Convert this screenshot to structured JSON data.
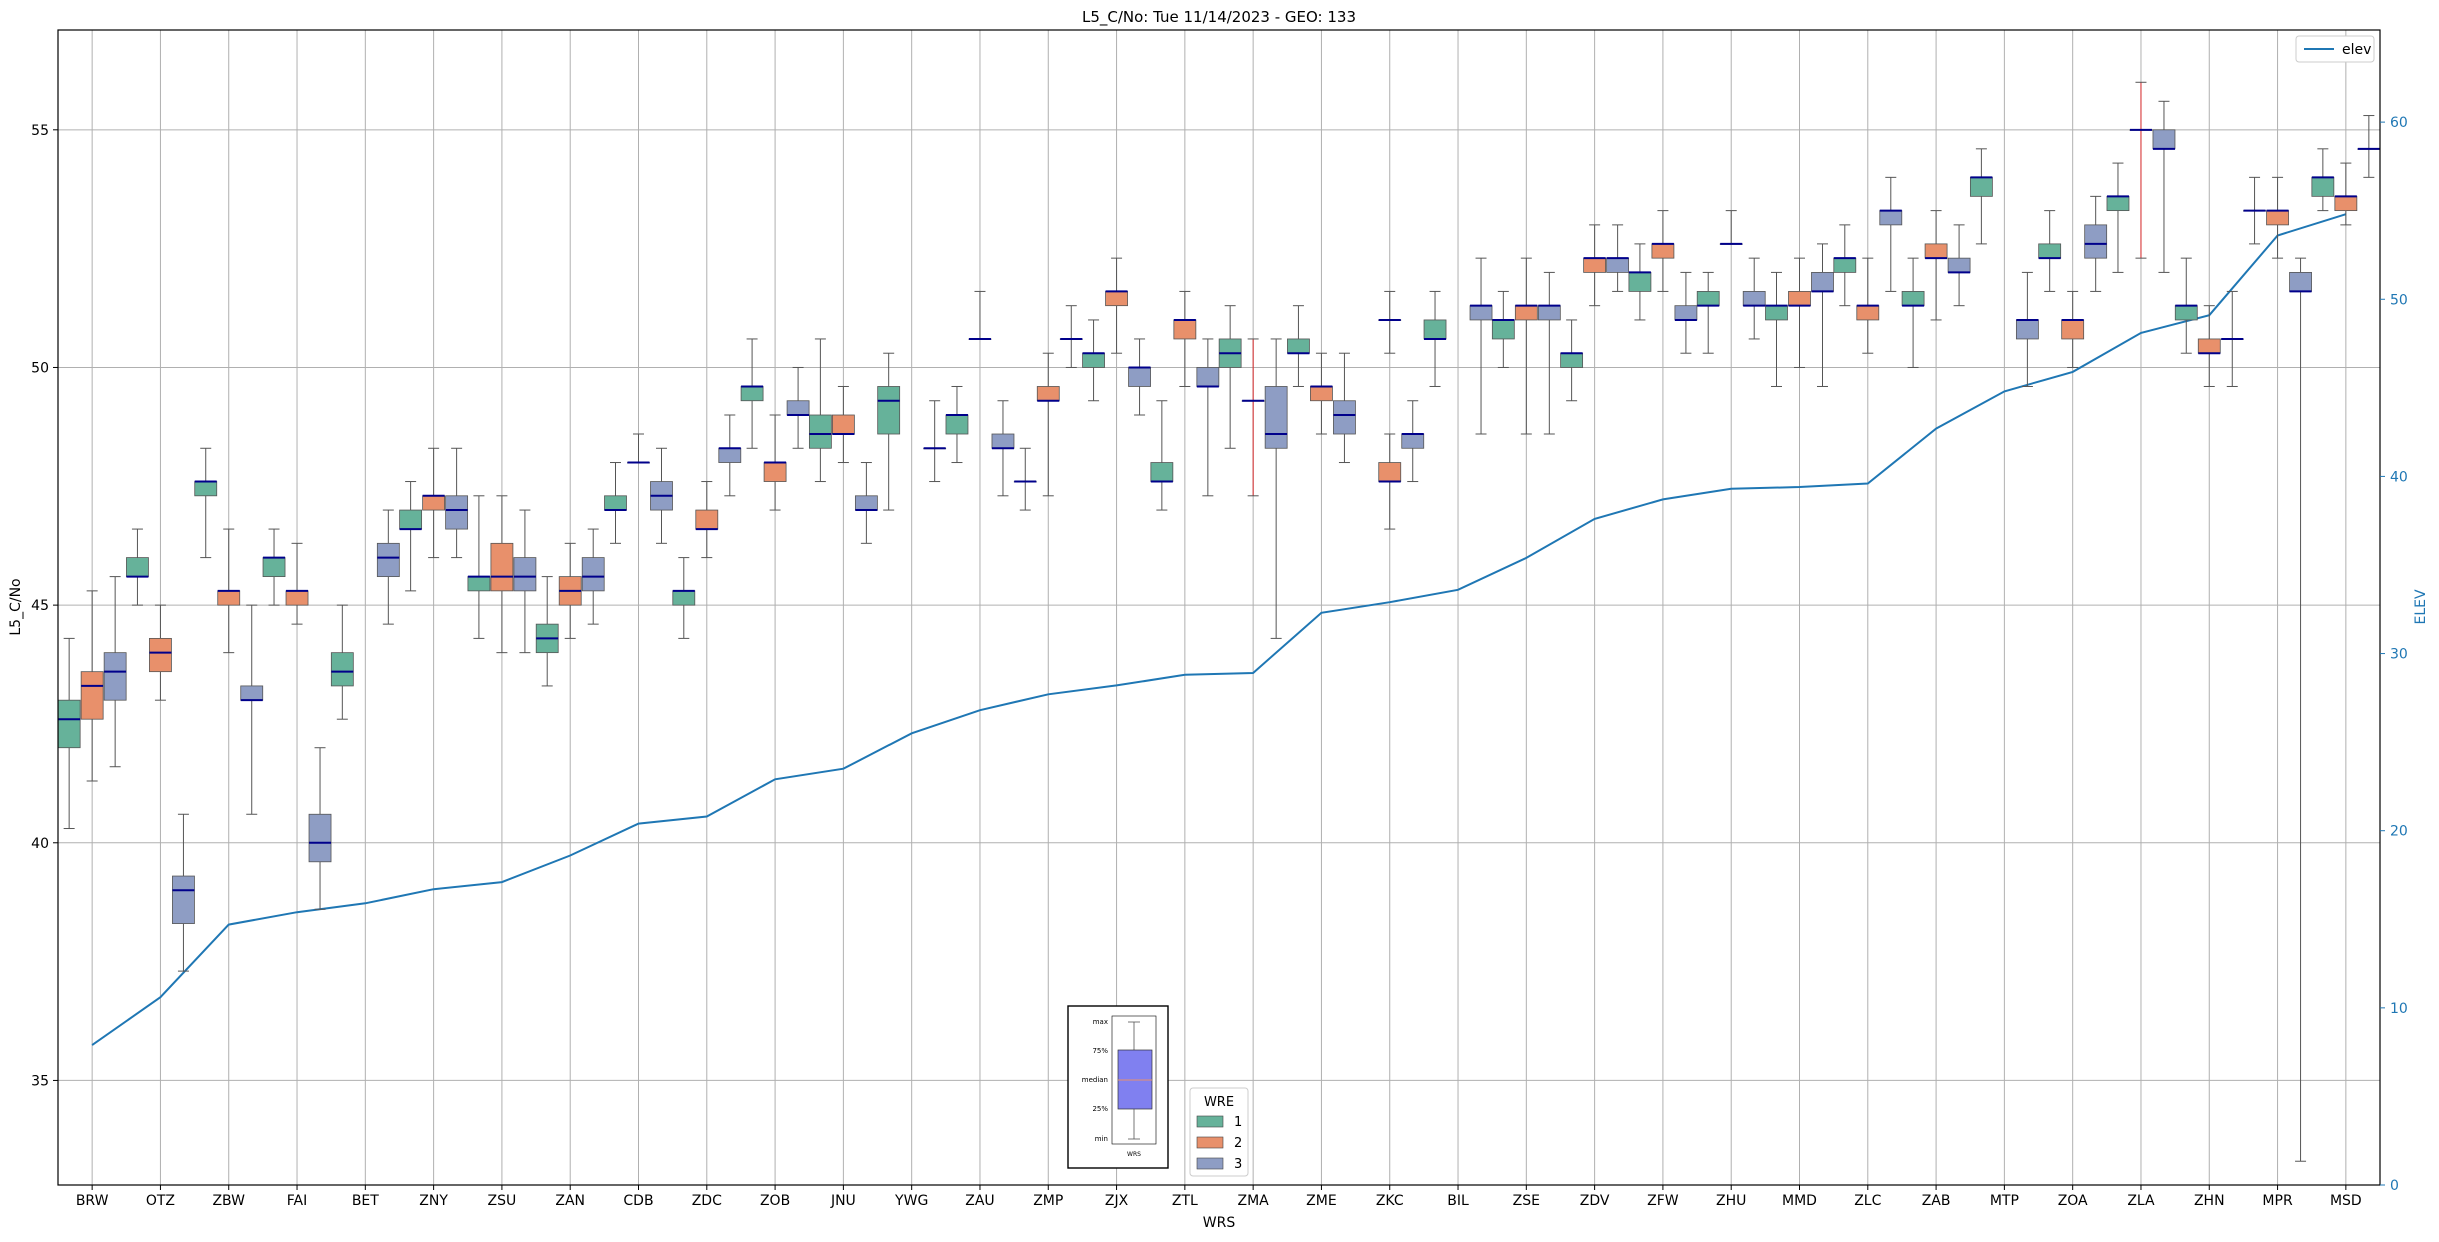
{
  "chart_data": {
    "type": "box",
    "title": "L5_C/No: Tue 11/14/2023 - GEO: 133",
    "xlabel": "WRS",
    "ylabel": "L5_C/No",
    "ylabel_right": "ELEV",
    "ylim": [
      32.8,
      57.1
    ],
    "ylim_right": [
      0,
      65.2
    ],
    "yticks": [
      35,
      40,
      45,
      50,
      55
    ],
    "yticks_right": [
      0,
      10,
      20,
      30,
      40,
      50,
      60
    ],
    "grid": true,
    "categories": [
      "BRW",
      "OTZ",
      "ZBW",
      "FAI",
      "BET",
      "ZNY",
      "ZSU",
      "ZAN",
      "CDB",
      "ZDC",
      "ZOB",
      "JNU",
      "YWG",
      "ZAU",
      "ZMP",
      "ZJX",
      "ZTL",
      "ZMA",
      "ZME",
      "ZKC",
      "BIL",
      "ZSE",
      "ZDV",
      "ZFW",
      "ZHU",
      "MMD",
      "ZLC",
      "ZAB",
      "MTP",
      "ZOA",
      "ZLA",
      "ZHN",
      "MPR",
      "MSD"
    ],
    "wre_colors": {
      "1": "#66b29a",
      "2": "#e8906b",
      "3": "#8e9dc4"
    },
    "elev_color": "#1f77b4",
    "boxes": [
      [
        0,
        1,
        40.3,
        42.0,
        42.6,
        43.0,
        44.3
      ],
      [
        0,
        2,
        41.3,
        42.6,
        43.3,
        43.6,
        45.3
      ],
      [
        0,
        3,
        41.6,
        43.0,
        43.6,
        44.0,
        45.6
      ],
      [
        1,
        1,
        45.0,
        45.6,
        45.6,
        46.0,
        46.6
      ],
      [
        1,
        2,
        43.0,
        43.6,
        44.0,
        44.3,
        45.0
      ],
      [
        1,
        3,
        37.3,
        38.3,
        39.0,
        39.3,
        40.6
      ],
      [
        2,
        1,
        46.0,
        47.3,
        47.6,
        47.6,
        48.3
      ],
      [
        2,
        2,
        44.0,
        45.0,
        45.3,
        45.3,
        46.6
      ],
      [
        2,
        3,
        40.6,
        43.0,
        43.0,
        43.3,
        45.0
      ],
      [
        3,
        1,
        45.0,
        45.6,
        46.0,
        46.0,
        46.6
      ],
      [
        3,
        2,
        44.6,
        45.0,
        45.3,
        45.3,
        46.3
      ],
      [
        3,
        3,
        38.6,
        39.6,
        40.0,
        40.6,
        42.0
      ],
      [
        4,
        1,
        42.6,
        43.3,
        43.6,
        44.0,
        45.0
      ],
      [
        4,
        3,
        44.6,
        45.6,
        46.0,
        46.3,
        47.0
      ],
      [
        5,
        1,
        45.3,
        46.6,
        46.6,
        47.0,
        47.6
      ],
      [
        5,
        2,
        46.0,
        47.0,
        47.3,
        47.3,
        48.3
      ],
      [
        5,
        3,
        46.0,
        46.6,
        47.0,
        47.3,
        48.3
      ],
      [
        6,
        1,
        44.3,
        45.3,
        45.6,
        45.6,
        47.3
      ],
      [
        6,
        2,
        44.0,
        45.3,
        45.6,
        46.3,
        47.3
      ],
      [
        6,
        3,
        44.0,
        45.3,
        45.6,
        46.0,
        47.0
      ],
      [
        7,
        1,
        43.3,
        44.0,
        44.3,
        44.6,
        45.6
      ],
      [
        7,
        2,
        44.3,
        45.0,
        45.3,
        45.6,
        46.3
      ],
      [
        7,
        3,
        44.6,
        45.3,
        45.6,
        46.0,
        46.6
      ],
      [
        8,
        1,
        46.3,
        47.0,
        47.0,
        47.3,
        48.0
      ],
      [
        8,
        2,
        48.0,
        48.0,
        48.0,
        48.0,
        48.6
      ],
      [
        8,
        3,
        46.3,
        47.0,
        47.3,
        47.6,
        48.3
      ],
      [
        9,
        1,
        44.3,
        45.0,
        45.3,
        45.3,
        46.0
      ],
      [
        9,
        2,
        46.0,
        46.6,
        46.6,
        47.0,
        47.6
      ],
      [
        9,
        3,
        47.3,
        48.0,
        48.3,
        48.3,
        49.0
      ],
      [
        10,
        1,
        48.3,
        49.3,
        49.6,
        49.6,
        50.6
      ],
      [
        10,
        2,
        47.0,
        47.6,
        48.0,
        48.0,
        49.0
      ],
      [
        10,
        3,
        48.3,
        49.0,
        49.0,
        49.3,
        50.0
      ],
      [
        11,
        1,
        47.6,
        48.3,
        48.6,
        49.0,
        50.6
      ],
      [
        11,
        2,
        48.0,
        48.6,
        48.6,
        49.0,
        49.6
      ],
      [
        11,
        3,
        46.3,
        47.0,
        47.0,
        47.3,
        48.0
      ],
      [
        12,
        1,
        47.0,
        48.6,
        49.3,
        49.6,
        50.3
      ],
      [
        12,
        3,
        47.6,
        48.3,
        48.3,
        48.3,
        49.3
      ],
      [
        13,
        1,
        48.0,
        48.6,
        49.0,
        49.0,
        49.6
      ],
      [
        13,
        2,
        50.6,
        50.6,
        50.6,
        50.6,
        51.6
      ],
      [
        13,
        3,
        47.3,
        48.3,
        48.3,
        48.6,
        49.3
      ],
      [
        14,
        1,
        47.0,
        47.6,
        47.6,
        47.6,
        48.3
      ],
      [
        14,
        2,
        47.3,
        49.3,
        49.3,
        49.6,
        50.3
      ],
      [
        14,
        3,
        50.0,
        50.6,
        50.6,
        50.6,
        51.3
      ],
      [
        15,
        1,
        49.3,
        50.0,
        50.3,
        50.3,
        51.0
      ],
      [
        15,
        2,
        50.3,
        51.3,
        51.6,
        51.6,
        52.3
      ],
      [
        15,
        3,
        49.0,
        49.6,
        50.0,
        50.0,
        50.6
      ],
      [
        16,
        1,
        47.0,
        47.6,
        47.6,
        48.0,
        49.3
      ],
      [
        16,
        2,
        49.6,
        50.6,
        51.0,
        51.0,
        51.6
      ],
      [
        16,
        3,
        47.3,
        49.6,
        49.6,
        50.0,
        50.6
      ],
      [
        17,
        1,
        48.3,
        50.0,
        50.3,
        50.6,
        51.3
      ],
      [
        17,
        2,
        47.3,
        49.3,
        49.3,
        49.3,
        50.6
      ],
      [
        17,
        3,
        44.3,
        48.3,
        48.6,
        49.6,
        50.6
      ],
      [
        18,
        1,
        49.6,
        50.3,
        50.3,
        50.6,
        51.3
      ],
      [
        18,
        2,
        48.6,
        49.3,
        49.6,
        49.6,
        50.3
      ],
      [
        18,
        3,
        48.0,
        48.6,
        49.0,
        49.3,
        50.3
      ],
      [
        19,
        2,
        46.6,
        47.6,
        47.6,
        48.0,
        48.6
      ],
      [
        19,
        2,
        50.3,
        51.0,
        51.0,
        51.0,
        51.6
      ],
      [
        19,
        3,
        47.6,
        48.3,
        48.6,
        48.6,
        49.3
      ],
      [
        20,
        1,
        49.6,
        50.6,
        50.6,
        51.0,
        51.6
      ],
      [
        20,
        3,
        48.6,
        51.0,
        51.3,
        51.3,
        52.3
      ],
      [
        21,
        1,
        50.0,
        50.6,
        51.0,
        51.0,
        51.6
      ],
      [
        21,
        2,
        48.6,
        51.0,
        51.3,
        51.3,
        52.3
      ],
      [
        21,
        3,
        48.6,
        51.0,
        51.3,
        51.3,
        52.0
      ],
      [
        22,
        1,
        49.3,
        50.0,
        50.3,
        50.3,
        51.0
      ],
      [
        22,
        2,
        51.3,
        52.0,
        52.3,
        52.3,
        53.0
      ],
      [
        22,
        3,
        51.6,
        52.0,
        52.3,
        52.3,
        53.0
      ],
      [
        23,
        1,
        51.0,
        51.6,
        52.0,
        52.0,
        52.6
      ],
      [
        23,
        2,
        51.6,
        52.3,
        52.6,
        52.6,
        53.3
      ],
      [
        23,
        3,
        50.3,
        51.0,
        51.0,
        51.3,
        52.0
      ],
      [
        24,
        1,
        50.3,
        51.3,
        51.3,
        51.6,
        52.0
      ],
      [
        24,
        2,
        52.6,
        52.6,
        52.6,
        52.6,
        53.3
      ],
      [
        24,
        3,
        50.6,
        51.3,
        51.3,
        51.6,
        52.3
      ],
      [
        25,
        1,
        49.6,
        51.0,
        51.3,
        51.3,
        52.0
      ],
      [
        25,
        2,
        50.0,
        51.3,
        51.3,
        51.6,
        52.3
      ],
      [
        25,
        3,
        49.6,
        51.6,
        51.6,
        52.0,
        52.6
      ],
      [
        26,
        1,
        51.3,
        52.0,
        52.3,
        52.3,
        53.0
      ],
      [
        26,
        2,
        50.3,
        51.0,
        51.3,
        51.3,
        52.3
      ],
      [
        26,
        3,
        51.6,
        53.0,
        53.3,
        53.3,
        54.0
      ],
      [
        27,
        1,
        50.0,
        51.3,
        51.3,
        51.6,
        52.3
      ],
      [
        27,
        2,
        51.0,
        52.3,
        52.3,
        52.6,
        53.3
      ],
      [
        27,
        3,
        51.3,
        52.0,
        52.0,
        52.3,
        53.0
      ],
      [
        28,
        1,
        52.6,
        53.6,
        54.0,
        54.0,
        54.6
      ],
      [
        28,
        3,
        49.6,
        50.6,
        51.0,
        51.0,
        52.0
      ],
      [
        29,
        1,
        51.6,
        52.3,
        52.3,
        52.6,
        53.3
      ],
      [
        29,
        2,
        50.0,
        50.6,
        51.0,
        51.0,
        51.6
      ],
      [
        29,
        3,
        51.6,
        52.3,
        52.6,
        53.0,
        53.6
      ],
      [
        30,
        1,
        52.0,
        53.3,
        53.6,
        53.6,
        54.3
      ],
      [
        30,
        2,
        52.3,
        55.0,
        55.0,
        55.0,
        56.0
      ],
      [
        30,
        3,
        52.0,
        54.6,
        54.6,
        55.0,
        55.6
      ],
      [
        31,
        1,
        50.3,
        51.0,
        51.3,
        51.3,
        52.3
      ],
      [
        31,
        2,
        49.6,
        50.3,
        50.3,
        50.6,
        51.3
      ],
      [
        31,
        3,
        49.6,
        50.6,
        50.6,
        50.6,
        51.6
      ],
      [
        32,
        1,
        52.6,
        53.3,
        53.3,
        53.3,
        54.0
      ],
      [
        32,
        2,
        52.3,
        53.0,
        53.3,
        53.3,
        54.0
      ],
      [
        32,
        3,
        33.3,
        51.6,
        51.6,
        52.0,
        52.3
      ],
      [
        33,
        1,
        53.3,
        53.6,
        54.0,
        54.0,
        54.6
      ],
      [
        33,
        2,
        53.0,
        53.3,
        53.6,
        53.6,
        54.3
      ],
      [
        33,
        3,
        54.0,
        54.6,
        54.6,
        54.6,
        55.3
      ]
    ],
    "elev_values": [
      7.9,
      10.6,
      14.7,
      15.4,
      15.9,
      16.7,
      17.1,
      18.6,
      20.4,
      20.8,
      22.9,
      23.5,
      25.5,
      26.8,
      27.7,
      28.2,
      28.8,
      28.9,
      32.3,
      32.9,
      33.6,
      35.4,
      37.6,
      38.7,
      39.3,
      39.4,
      39.6,
      42.7,
      44.8,
      45.9,
      48.1,
      49.1,
      53.6,
      54.8
    ],
    "legend_elev": "elev",
    "legend_wre_title": "WRE",
    "legend_wre_items": [
      "1",
      "2",
      "3"
    ],
    "inset_labels": [
      "max",
      "75%",
      "median",
      "25%",
      "min",
      "WRS"
    ]
  }
}
